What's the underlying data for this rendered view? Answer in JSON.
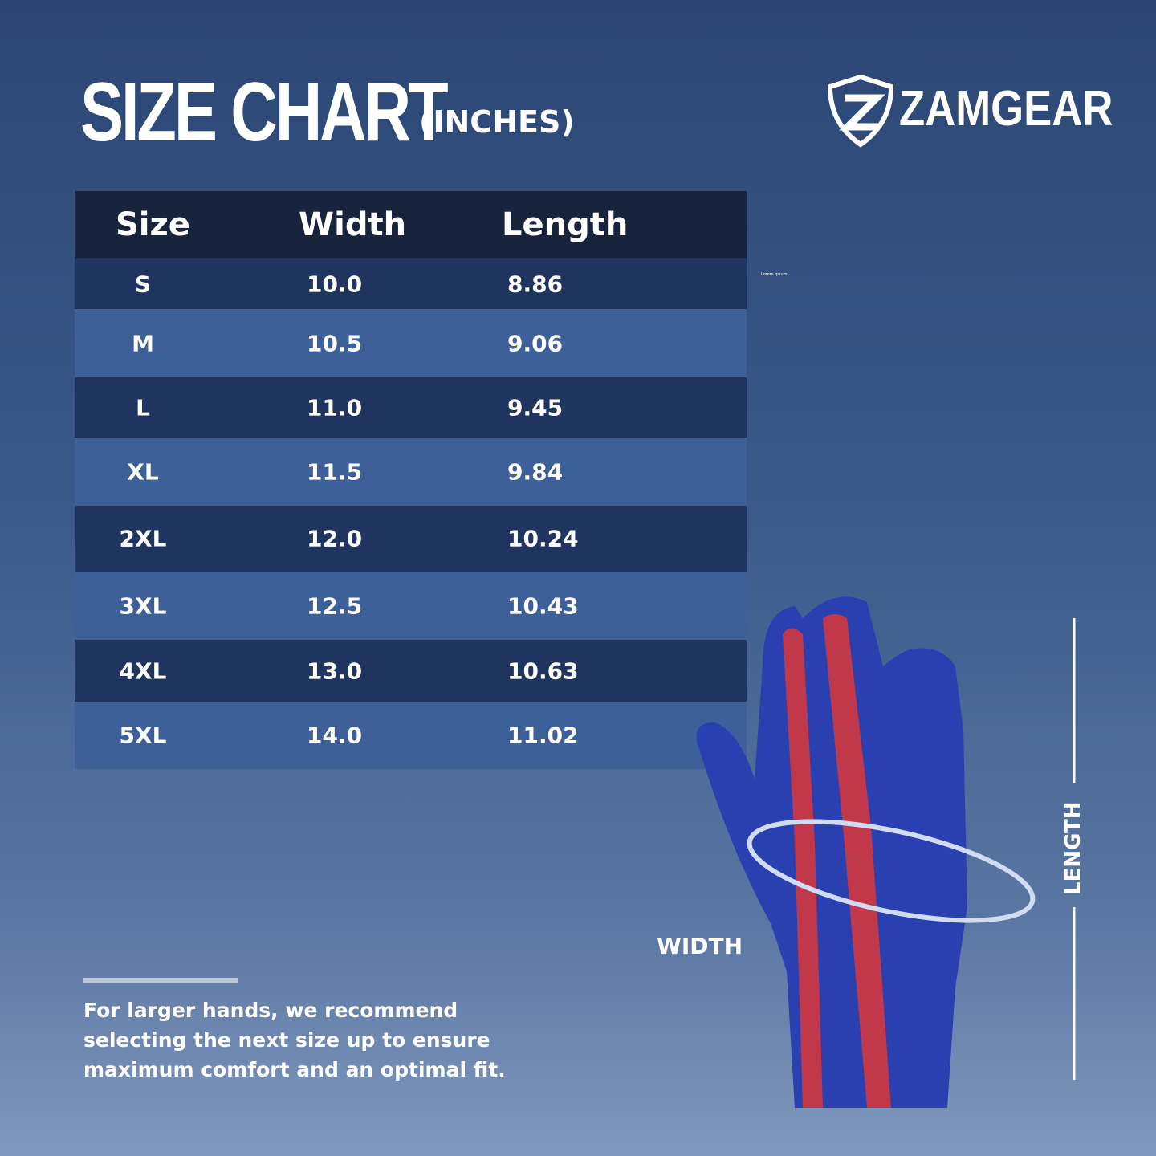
{
  "header": {
    "title": "SIZE CHART",
    "unit": "(INCHES)",
    "brand": "ZAMGEAR"
  },
  "table": {
    "columns": [
      "Size",
      "Width",
      "Length"
    ],
    "rows": [
      [
        "S",
        "10.0",
        "8.86"
      ],
      [
        "M",
        "10.5",
        "9.06"
      ],
      [
        "L",
        "11.0",
        "9.45"
      ],
      [
        "XL",
        "11.5",
        "9.84"
      ],
      [
        "2XL",
        "12.0",
        "10.24"
      ],
      [
        "3XL",
        "12.5",
        "10.43"
      ],
      [
        "4XL",
        "13.0",
        "10.63"
      ],
      [
        "5XL",
        "14.0",
        "11.02"
      ]
    ]
  },
  "stray_text": "Lorem Ipsum",
  "diagram": {
    "width_label": "WIDTH",
    "length_label": "LENGTH"
  },
  "note": "For larger hands, we recommend selecting the next size up to ensure maximum comfort and an optimal fit."
}
